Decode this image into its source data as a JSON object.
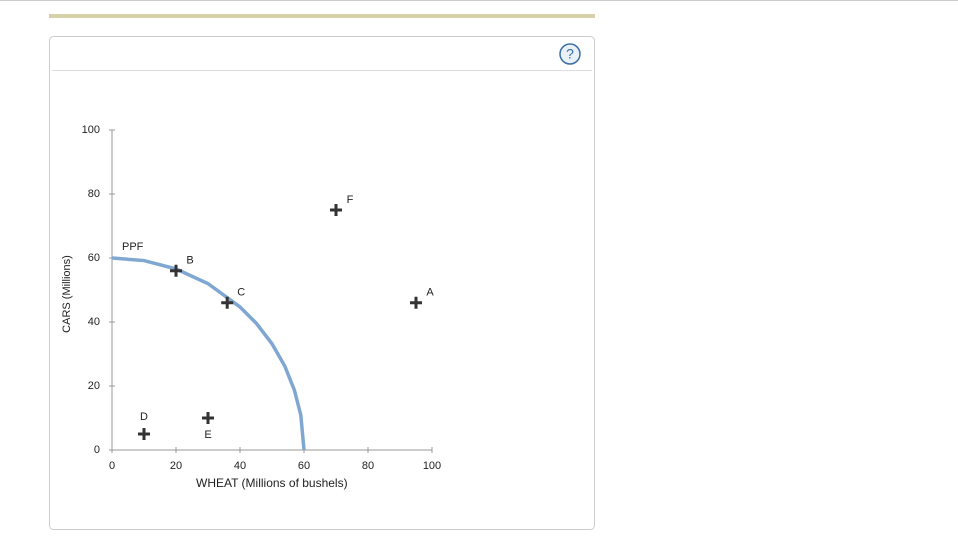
{
  "help_button": "?",
  "chart_data": {
    "type": "scatter",
    "x_label": "WHEAT (Millions of bushels)",
    "y_label": "CARS (Millions)",
    "xlim": [
      0,
      100
    ],
    "ylim": [
      0,
      100
    ],
    "xticks": [
      0,
      20,
      40,
      60,
      80,
      100
    ],
    "yticks": [
      0,
      20,
      40,
      60,
      80,
      100
    ],
    "grid": false,
    "curve": {
      "name": "PPF",
      "color": "#7fa7d1",
      "x": [
        0,
        10,
        20,
        30,
        40,
        45,
        50,
        54,
        57,
        59,
        60
      ],
      "values": [
        60,
        59.2,
        56.6,
        52,
        44.7,
        39.7,
        33.2,
        26.2,
        18.7,
        10.9,
        0
      ]
    },
    "points": {
      "color": "#333333",
      "labels": [
        "A",
        "B",
        "C",
        "D",
        "E",
        "F"
      ],
      "x": [
        95,
        20,
        36,
        10,
        30,
        70
      ],
      "values": [
        46,
        56,
        46,
        5,
        10,
        75
      ]
    }
  }
}
